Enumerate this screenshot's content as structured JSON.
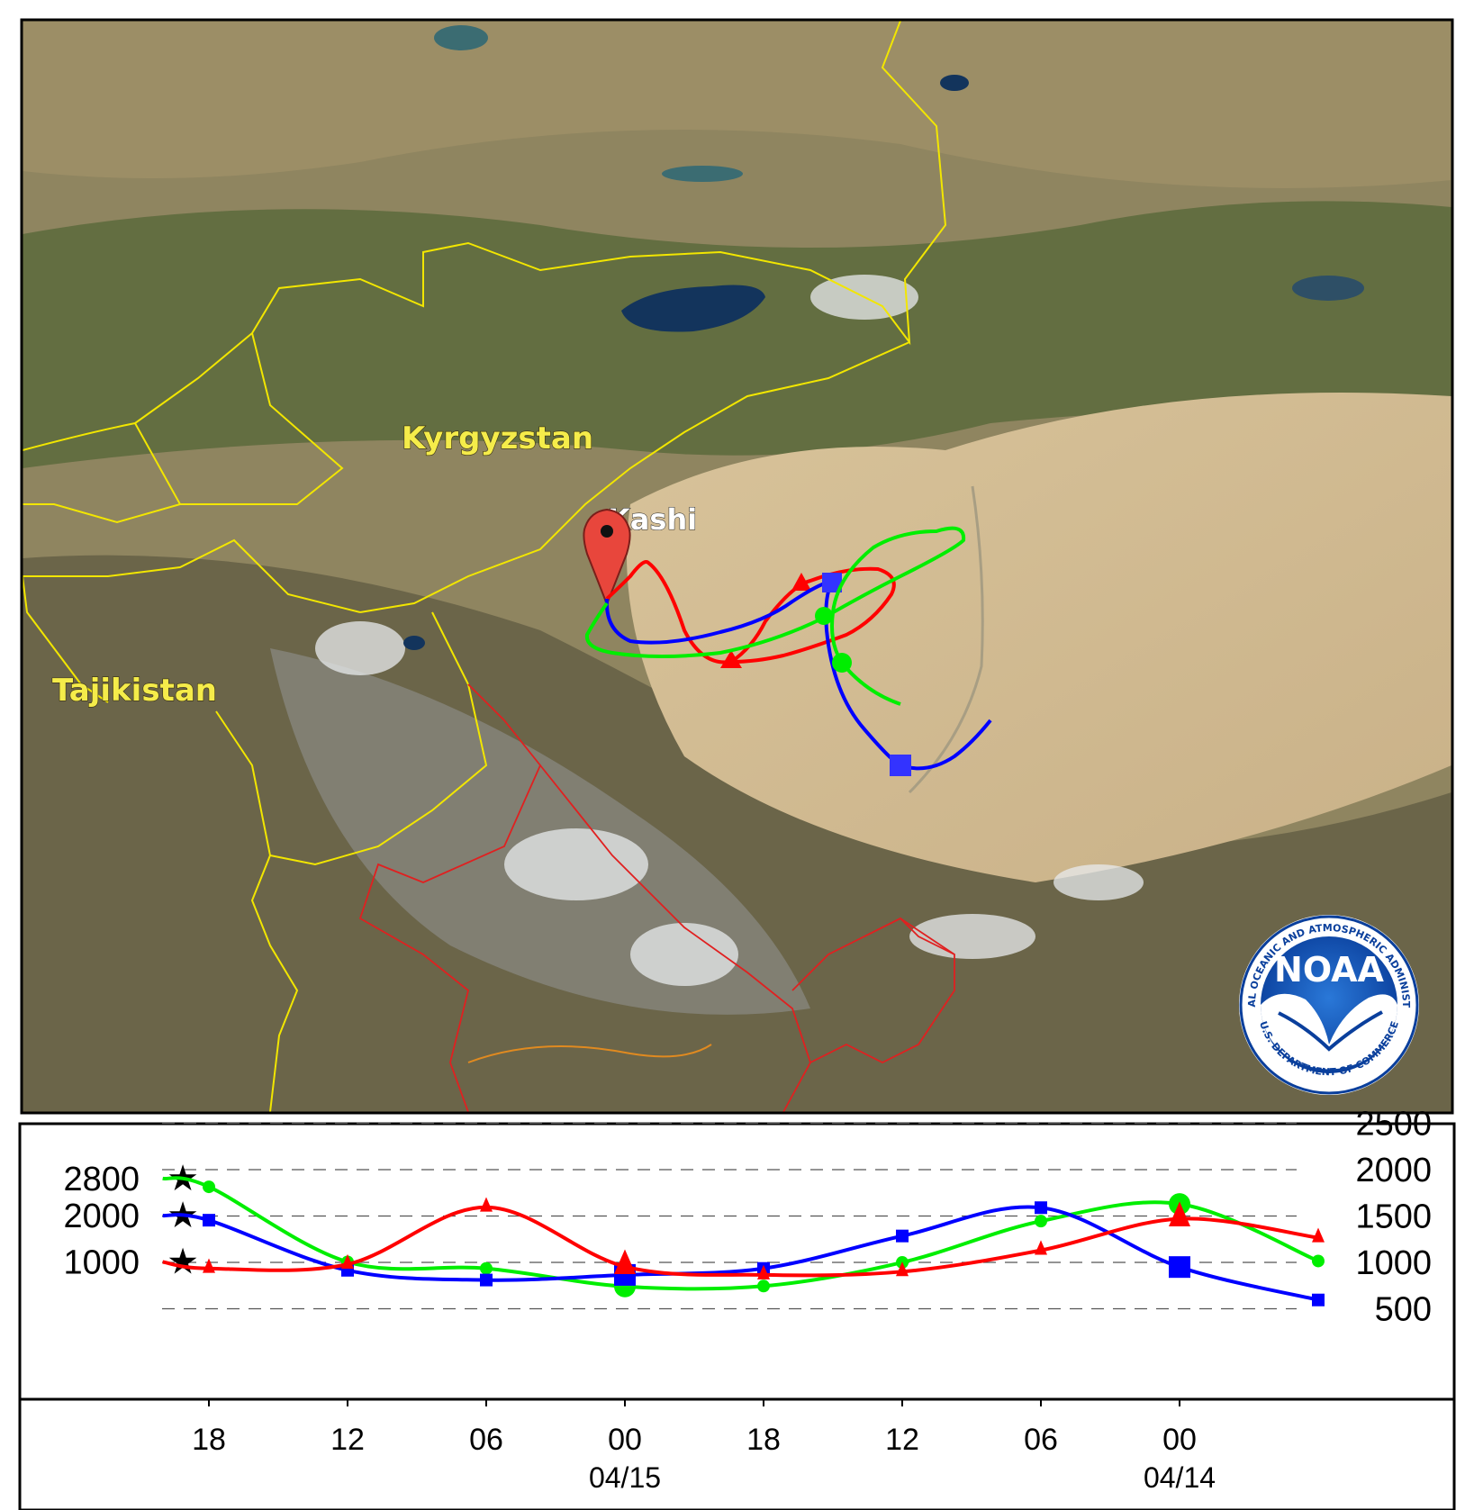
{
  "map": {
    "country_labels": [
      "Kyrgyzstan",
      "Tajikistan"
    ],
    "source_location": "Kashi",
    "logo": {
      "center_text": "NOAA",
      "ring_text_top": "NATIONAL OCEANIC AND ATMOSPHERIC ADMINISTRATION",
      "ring_text_bottom": "U.S. DEPARTMENT OF COMMERCE"
    },
    "colors": {
      "red_track": "#ff0000",
      "blue_track": "#0000ff",
      "green_track": "#00ee00",
      "border_yellow": "#f2e600",
      "border_red": "#e02020",
      "pin": "#e8463c"
    }
  },
  "chart_data": {
    "type": "line",
    "title": "",
    "ylabel": "",
    "xlabel": "",
    "y_left_ticks": [
      1000,
      2000,
      2800
    ],
    "y_right_ticks": [
      500,
      1000,
      1500,
      2000,
      2500
    ],
    "x_ticks": [
      {
        "label": "18",
        "date": ""
      },
      {
        "label": "12",
        "date": ""
      },
      {
        "label": "06",
        "date": ""
      },
      {
        "label": "00",
        "date": "04/15"
      },
      {
        "label": "18",
        "date": ""
      },
      {
        "label": "12",
        "date": ""
      },
      {
        "label": "06",
        "date": ""
      },
      {
        "label": "00",
        "date": "04/14"
      }
    ],
    "start_markers": [
      2800,
      2000,
      1000
    ],
    "grid": "dashed horizontal",
    "series": [
      {
        "color": "#00ee00",
        "marker": "circle",
        "x": [
          "04/15 20:00",
          "04/15 18:00",
          "04/15 12:00",
          "04/15 06:00",
          "04/15 00:00",
          "04/14 18:00",
          "04/14 12:00",
          "04/14 06:00",
          "04/14 00:00",
          "04/13 18:00"
        ],
        "y": [
          2800,
          2620,
          1000,
          860,
          470,
          480,
          990,
          1880,
          2250,
          1020
        ]
      },
      {
        "color": "#0000ff",
        "marker": "square",
        "x": [
          "04/15 20:00",
          "04/15 18:00",
          "04/15 12:00",
          "04/15 06:00",
          "04/15 00:00",
          "04/14 18:00",
          "04/14 12:00",
          "04/14 06:00",
          "04/14 00:00",
          "04/13 18:00"
        ],
        "y": [
          2000,
          1900,
          820,
          610,
          720,
          860,
          1560,
          2170,
          890,
          180
        ]
      },
      {
        "color": "#ff0000",
        "marker": "triangle",
        "x": [
          "04/15 20:00",
          "04/15 18:00",
          "04/15 12:00",
          "04/15 06:00",
          "04/15 00:00",
          "04/14 18:00",
          "04/14 12:00",
          "04/14 06:00",
          "04/14 00:00",
          "04/13 18:00"
        ],
        "y": [
          1000,
          860,
          950,
          2180,
          900,
          720,
          790,
          1250,
          1930,
          1520
        ]
      }
    ]
  }
}
